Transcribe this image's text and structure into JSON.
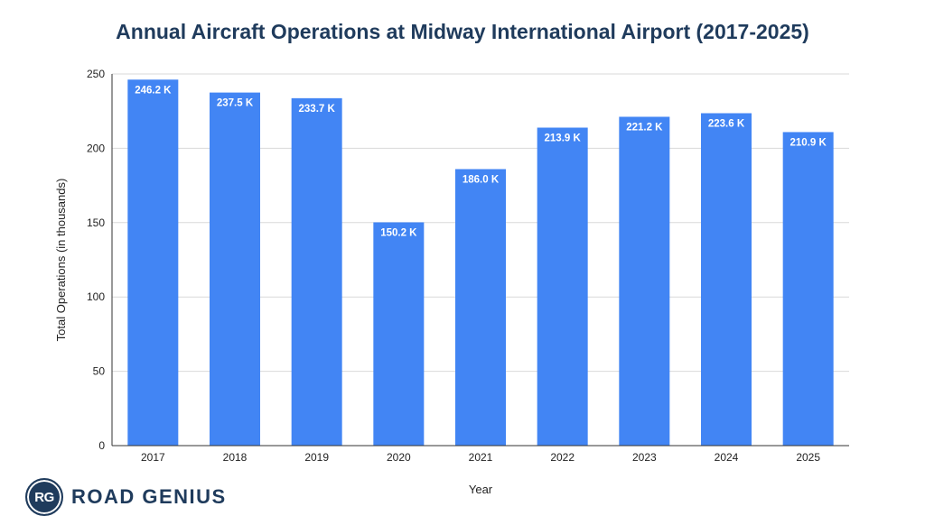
{
  "chart_data": {
    "type": "bar",
    "title": "Annual Aircraft Operations at Midway International Airport (2017-2025)",
    "xlabel": "Year",
    "ylabel": "Total Operations (in thousands)",
    "categories": [
      "2017",
      "2018",
      "2019",
      "2020",
      "2021",
      "2022",
      "2023",
      "2024",
      "2025"
    ],
    "values": [
      246.2,
      237.5,
      233.7,
      150.2,
      186.0,
      213.9,
      221.2,
      223.6,
      210.9
    ],
    "data_labels": [
      "246.2 K",
      "237.5 K",
      "233.7 K",
      "150.2 K",
      "186.0 K",
      "213.9 K",
      "221.2 K",
      "223.6 K",
      "210.9 K"
    ],
    "ylim": [
      0,
      250
    ],
    "yticks": [
      "0",
      "50",
      "100",
      "150",
      "200",
      "250"
    ],
    "grid": true,
    "bar_color": "#4285f4"
  },
  "branding": {
    "badge": "RG",
    "name": "ROAD GENIUS",
    "color": "#1f3b5c"
  }
}
